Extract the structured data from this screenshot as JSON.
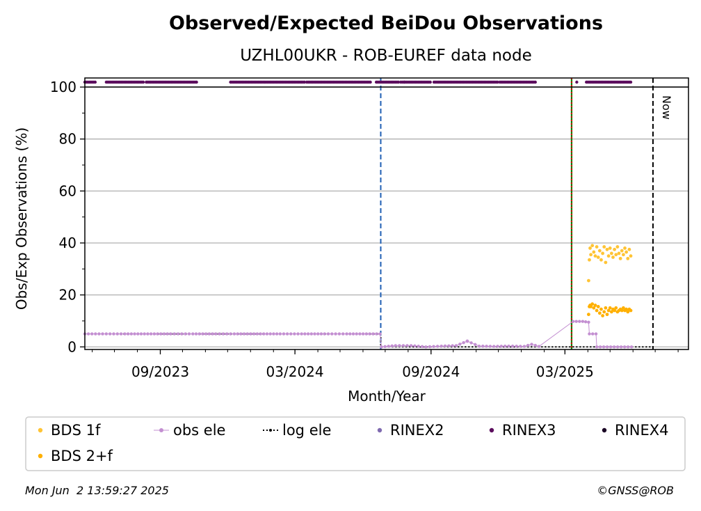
{
  "chart_data": {
    "type": "scatter",
    "title": "Observed/Expected BeiDou Observations",
    "subtitle": "UZHL00UKR - ROB-EUREF data node",
    "xlabel": "Month/Year",
    "ylabel": "Obs/Exp Observations (%)",
    "x_type": "date",
    "xlim": [
      "2023-05-22",
      "2025-08-15"
    ],
    "ylim": [
      -1,
      103.5
    ],
    "x_ticks": [
      {
        "date": "2023-09-01",
        "label": "09/2023"
      },
      {
        "date": "2024-03-01",
        "label": "03/2024"
      },
      {
        "date": "2024-09-01",
        "label": "09/2024"
      },
      {
        "date": "2025-03-01",
        "label": "03/2025"
      }
    ],
    "y_ticks": [
      0,
      20,
      40,
      60,
      80,
      100
    ],
    "grid": "horizontal",
    "reference_lines": [
      {
        "date": "2024-06-25",
        "color": "#1f5fb4",
        "style": "dashed"
      },
      {
        "date": "2025-03-10",
        "color": "#008000",
        "style": "solid"
      },
      {
        "date": "2025-03-10",
        "color": "#e00000",
        "style": "dotted"
      },
      {
        "date": "2025-06-28",
        "color": "#000000",
        "style": "dashed",
        "label": "Now"
      }
    ],
    "series": [
      {
        "name": "BDS 1f",
        "color": "#ffc435",
        "marker": "dot",
        "points": [
          [
            "2025-04-02",
            25.5
          ],
          [
            "2025-04-03",
            33.5
          ],
          [
            "2025-04-04",
            38
          ],
          [
            "2025-04-05",
            35.5
          ],
          [
            "2025-04-07",
            39
          ],
          [
            "2025-04-09",
            36.5
          ],
          [
            "2025-04-11",
            35
          ],
          [
            "2025-04-13",
            38.5
          ],
          [
            "2025-04-15",
            34.5
          ],
          [
            "2025-04-17",
            37
          ],
          [
            "2025-04-19",
            33.5
          ],
          [
            "2025-04-21",
            36
          ],
          [
            "2025-04-23",
            38.5
          ],
          [
            "2025-04-25",
            32.5
          ],
          [
            "2025-04-27",
            37.5
          ],
          [
            "2025-04-29",
            35
          ],
          [
            "2025-05-01",
            38
          ],
          [
            "2025-05-03",
            36
          ],
          [
            "2025-05-05",
            34.5
          ],
          [
            "2025-05-07",
            37.5
          ],
          [
            "2025-05-09",
            35.5
          ],
          [
            "2025-05-11",
            38.5
          ],
          [
            "2025-05-13",
            36
          ],
          [
            "2025-05-15",
            34
          ],
          [
            "2025-05-17",
            37
          ],
          [
            "2025-05-19",
            35.5
          ],
          [
            "2025-05-21",
            38
          ],
          [
            "2025-05-23",
            36.5
          ],
          [
            "2025-05-25",
            34
          ],
          [
            "2025-05-27",
            37.5
          ],
          [
            "2025-05-29",
            35
          ]
        ]
      },
      {
        "name": "BDS 2+f",
        "color": "#ffb000",
        "marker": "dot",
        "points": [
          [
            "2025-04-02",
            12.5
          ],
          [
            "2025-04-03",
            15.5
          ],
          [
            "2025-04-04",
            16
          ],
          [
            "2025-04-05",
            15.5
          ],
          [
            "2025-04-07",
            16.5
          ],
          [
            "2025-04-09",
            15
          ],
          [
            "2025-04-11",
            16
          ],
          [
            "2025-04-13",
            14
          ],
          [
            "2025-04-15",
            15.5
          ],
          [
            "2025-04-17",
            13
          ],
          [
            "2025-04-19",
            14.5
          ],
          [
            "2025-04-21",
            12
          ],
          [
            "2025-04-23",
            13.5
          ],
          [
            "2025-04-25",
            15
          ],
          [
            "2025-04-27",
            12.5
          ],
          [
            "2025-04-29",
            14
          ],
          [
            "2025-05-01",
            15
          ],
          [
            "2025-05-03",
            13.5
          ],
          [
            "2025-05-05",
            14.5
          ],
          [
            "2025-05-07",
            14
          ],
          [
            "2025-05-09",
            15
          ],
          [
            "2025-05-11",
            13.5
          ],
          [
            "2025-05-13",
            14
          ],
          [
            "2025-05-15",
            14.5
          ],
          [
            "2025-05-17",
            14
          ],
          [
            "2025-05-19",
            15
          ],
          [
            "2025-05-21",
            14
          ],
          [
            "2025-05-23",
            14.5
          ],
          [
            "2025-05-25",
            13.5
          ],
          [
            "2025-05-27",
            14.5
          ],
          [
            "2025-05-29",
            14
          ]
        ]
      },
      {
        "name": "obs ele",
        "color": "#c38fd1",
        "marker": "line-dot",
        "points": [
          [
            "2023-05-22",
            5
          ],
          [
            "2023-06-15",
            5
          ],
          [
            "2023-07-15",
            5
          ],
          [
            "2023-08-15",
            5
          ],
          [
            "2023-09-15",
            5
          ],
          [
            "2023-10-15",
            5
          ],
          [
            "2023-11-15",
            5
          ],
          [
            "2023-12-10",
            5
          ],
          [
            "2024-01-10",
            5
          ],
          [
            "2024-02-10",
            5
          ],
          [
            "2024-03-10",
            5
          ],
          [
            "2024-04-10",
            5
          ],
          [
            "2024-05-10",
            5
          ],
          [
            "2024-06-10",
            5
          ],
          [
            "2024-06-24",
            5
          ],
          [
            "2024-06-26",
            0
          ],
          [
            "2024-07-15",
            0.5
          ],
          [
            "2024-08-05",
            0.5
          ],
          [
            "2024-08-25",
            0
          ],
          [
            "2024-09-15",
            0.3
          ],
          [
            "2024-10-05",
            0.5
          ],
          [
            "2024-10-20",
            2.2
          ],
          [
            "2024-11-05",
            0.3
          ],
          [
            "2024-11-25",
            0.2
          ],
          [
            "2024-12-15",
            0.3
          ],
          [
            "2025-01-05",
            0.2
          ],
          [
            "2025-01-15",
            1
          ],
          [
            "2025-01-25",
            0.2
          ],
          [
            "2025-03-12",
            9.8
          ],
          [
            "2025-03-25",
            9.8
          ],
          [
            "2025-04-02",
            9.5
          ],
          [
            "2025-04-03",
            5
          ],
          [
            "2025-04-12",
            5
          ],
          [
            "2025-04-13",
            0
          ],
          [
            "2025-05-30",
            0
          ]
        ]
      },
      {
        "name": "log ele",
        "color": "#000000",
        "marker": "dotted-line",
        "points": [
          [
            "2023-05-22",
            5
          ],
          [
            "2024-06-25",
            5
          ],
          [
            "2024-06-25",
            0
          ],
          [
            "2025-06-28",
            0
          ]
        ]
      },
      {
        "name": "RINEX2",
        "color": "#7f6ab0",
        "marker": "dot",
        "points": []
      },
      {
        "name": "RINEX3",
        "color": "#5c0e5e",
        "marker": "dot",
        "ranges": [
          [
            "2023-05-22",
            "2023-06-05"
          ],
          [
            "2023-06-20",
            "2023-08-10"
          ],
          [
            "2023-08-13",
            "2023-10-20"
          ],
          [
            "2023-12-05",
            "2024-03-15"
          ],
          [
            "2024-03-17",
            "2024-06-12"
          ],
          [
            "2024-06-19",
            "2024-07-20"
          ],
          [
            "2024-07-22",
            "2024-08-31"
          ],
          [
            "2024-09-05",
            "2024-12-01"
          ],
          [
            "2024-12-03",
            "2025-01-20"
          ],
          [
            "2025-03-30",
            "2025-05-30"
          ]
        ],
        "points": [
          [
            "2024-07-27",
            101.5
          ],
          [
            "2025-03-17",
            101.5
          ]
        ]
      },
      {
        "name": "RINEX4",
        "color": "#1a0525",
        "marker": "dot",
        "points": []
      }
    ]
  },
  "legend": {
    "items": [
      {
        "label": "BDS 1f",
        "color": "#ffc435",
        "kind": "dot"
      },
      {
        "label": "obs ele",
        "color": "#c38fd1",
        "kind": "line-dot"
      },
      {
        "label": "log ele",
        "color": "#000000",
        "kind": "dotted-line"
      },
      {
        "label": "RINEX2",
        "color": "#7f6ab0",
        "kind": "dot"
      },
      {
        "label": "RINEX3",
        "color": "#5c0e5e",
        "kind": "dot"
      },
      {
        "label": "RINEX4",
        "color": "#1a0525",
        "kind": "dot"
      },
      {
        "label": "BDS 2+f",
        "color": "#ffb000",
        "kind": "dot"
      }
    ]
  },
  "footer": {
    "timestamp": "Mon Jun  2 13:59:27 2025",
    "copyright": "©GNSS@ROB"
  },
  "now_label": "Now"
}
